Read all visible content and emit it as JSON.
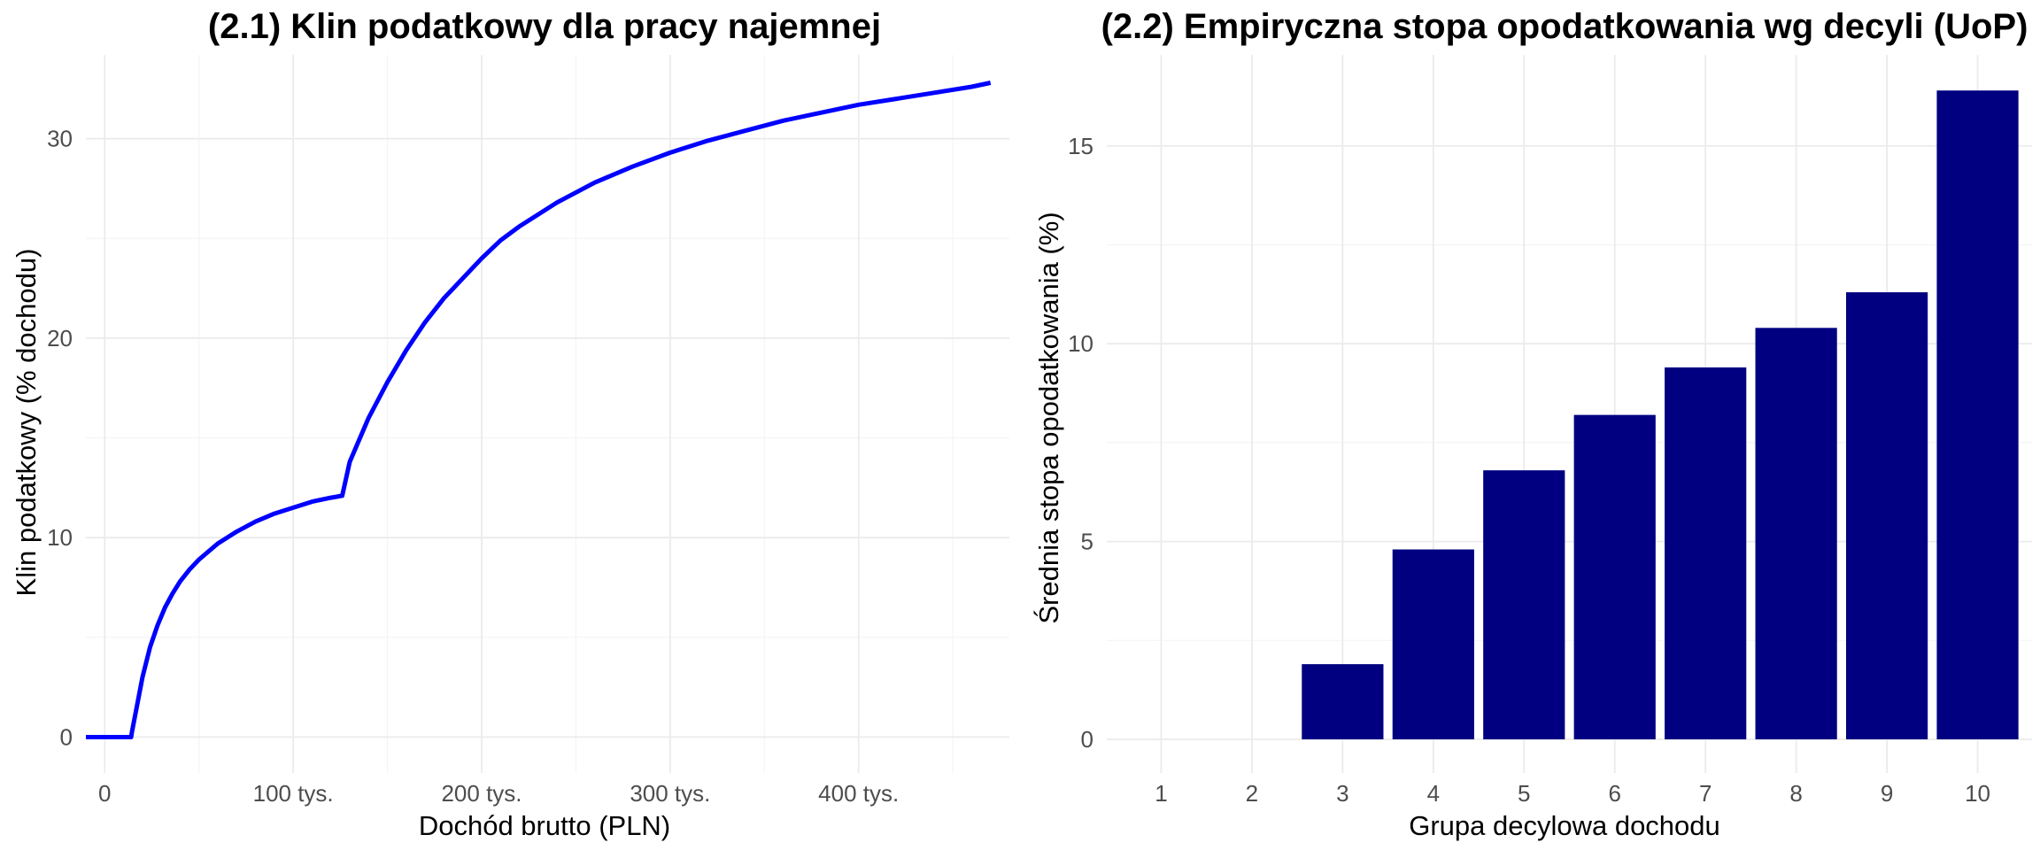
{
  "chart_data": [
    {
      "type": "line",
      "title": "(2.1) Klin podatkowy dla pracy najemnej",
      "xlabel": "Dochód brutto (PLN)",
      "ylabel": "Klin podatkowy (% dochodu)",
      "xlim": [
        -10000,
        480000
      ],
      "ylim": [
        -1.8,
        34.2
      ],
      "x_ticks": [
        0,
        100000,
        200000,
        300000,
        400000
      ],
      "x_tick_labels": [
        "0",
        "100 tys.",
        "200 tys.",
        "300 tys.",
        "400 tys."
      ],
      "y_ticks": [
        0,
        10,
        20,
        30
      ],
      "y_tick_labels": [
        "0",
        "10",
        "20",
        "30"
      ],
      "line_color": "#0000FF",
      "series": [
        {
          "name": "Klin podatkowy",
          "x": [
            -10000,
            0,
            14000,
            14500,
            18000,
            20000,
            24000,
            28000,
            32000,
            36000,
            40000,
            45000,
            50000,
            55000,
            60000,
            70000,
            80000,
            90000,
            100000,
            110000,
            120000,
            126000,
            130000,
            140000,
            150000,
            160000,
            170000,
            180000,
            190000,
            200000,
            210000,
            220000,
            240000,
            260000,
            280000,
            300000,
            320000,
            340000,
            360000,
            380000,
            400000,
            420000,
            440000,
            460000,
            470000
          ],
          "y": [
            0,
            0,
            0,
            0.3,
            2.0,
            3.0,
            4.5,
            5.6,
            6.5,
            7.2,
            7.8,
            8.4,
            8.9,
            9.3,
            9.7,
            10.3,
            10.8,
            11.2,
            11.5,
            11.8,
            12.0,
            12.1,
            13.8,
            16.0,
            17.8,
            19.4,
            20.8,
            22.0,
            23.0,
            24.0,
            24.9,
            25.6,
            26.8,
            27.8,
            28.6,
            29.3,
            29.9,
            30.4,
            30.9,
            31.3,
            31.7,
            32.0,
            32.3,
            32.6,
            32.8
          ]
        }
      ]
    },
    {
      "type": "bar",
      "title": "(2.2) Empiryczna stopa opodatkowania wg decyli (UoP)",
      "xlabel": "Grupa decylowa dochodu",
      "ylabel": "Średnia stopa opodatkowania (%)",
      "categories": [
        "1",
        "2",
        "3",
        "4",
        "5",
        "6",
        "7",
        "8",
        "9",
        "10"
      ],
      "values": [
        0,
        0,
        1.9,
        4.8,
        6.8,
        8.2,
        9.4,
        10.4,
        11.3,
        16.4
      ],
      "ylim": [
        -0.85,
        17.3
      ],
      "y_ticks": [
        0,
        5,
        10,
        15
      ],
      "y_tick_labels": [
        "0",
        "5",
        "10",
        "15"
      ],
      "bar_color": "#000080"
    }
  ]
}
